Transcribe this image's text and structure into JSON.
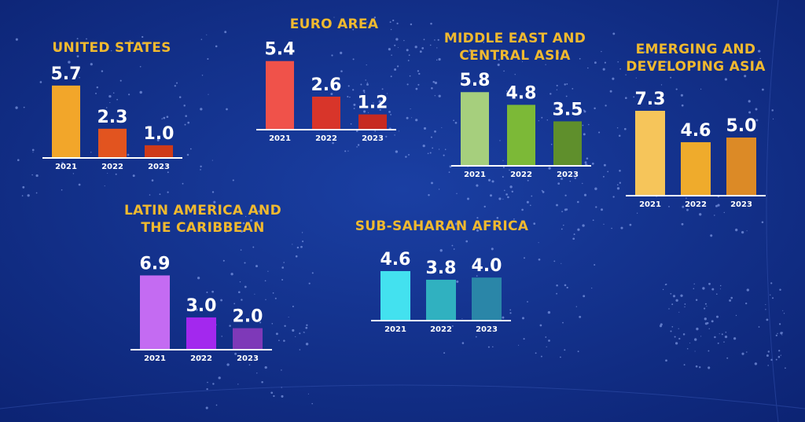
{
  "chart_data": [
    {
      "type": "bar",
      "title": "UNITED STATES",
      "categories": [
        "2021",
        "2022",
        "2023"
      ],
      "values": [
        5.7,
        2.3,
        1.0
      ],
      "value_labels": [
        "5.7",
        "2.3",
        "1.0"
      ],
      "colors": [
        "#f2a62a",
        "#e2541f",
        "#cf3a18"
      ]
    },
    {
      "type": "bar",
      "title": "EURO AREA",
      "categories": [
        "2021",
        "2022",
        "2023"
      ],
      "values": [
        5.4,
        2.6,
        1.2
      ],
      "value_labels": [
        "5.4",
        "2.6",
        "1.2"
      ],
      "colors": [
        "#f0524a",
        "#d8352a",
        "#c72a20"
      ]
    },
    {
      "type": "bar",
      "title": "MIDDLE EAST AND CENTRAL ASIA",
      "title_lines": [
        "MIDDLE EAST AND",
        "CENTRAL ASIA"
      ],
      "categories": [
        "2021",
        "2022",
        "2023"
      ],
      "values": [
        5.8,
        4.8,
        3.5
      ],
      "value_labels": [
        "5.8",
        "4.8",
        "3.5"
      ],
      "colors": [
        "#a6cf7d",
        "#7cb937",
        "#5f8f2c"
      ]
    },
    {
      "type": "bar",
      "title": "EMERGING AND DEVELOPING ASIA",
      "title_lines": [
        "EMERGING AND",
        "DEVELOPING ASIA"
      ],
      "categories": [
        "2021",
        "2022",
        "2023"
      ],
      "values": [
        7.3,
        4.6,
        5.0
      ],
      "value_labels": [
        "7.3",
        "4.6",
        "5.0"
      ],
      "colors": [
        "#f6c55a",
        "#efab2c",
        "#dc8a26"
      ]
    },
    {
      "type": "bar",
      "title": "LATIN AMERICA AND THE CARIBBEAN",
      "title_lines": [
        "LATIN AMERICA AND",
        "THE CARIBBEAN"
      ],
      "categories": [
        "2021",
        "2022",
        "2023"
      ],
      "values": [
        6.9,
        3.0,
        2.0
      ],
      "value_labels": [
        "6.9",
        "3.0",
        "2.0"
      ],
      "colors": [
        "#c46bf2",
        "#a328ee",
        "#7e39b8"
      ]
    },
    {
      "type": "bar",
      "title": "SUB-SAHARAN AFRICA",
      "categories": [
        "2021",
        "2022",
        "2023"
      ],
      "values": [
        4.6,
        3.8,
        4.0
      ],
      "value_labels": [
        "4.6",
        "3.8",
        "4.0"
      ],
      "colors": [
        "#43e1ef",
        "#30b1c0",
        "#2a86a8"
      ]
    }
  ],
  "theme": {
    "background": "#0f2a86",
    "title_color": "#f0b92f",
    "text_color": "#ffffff"
  }
}
